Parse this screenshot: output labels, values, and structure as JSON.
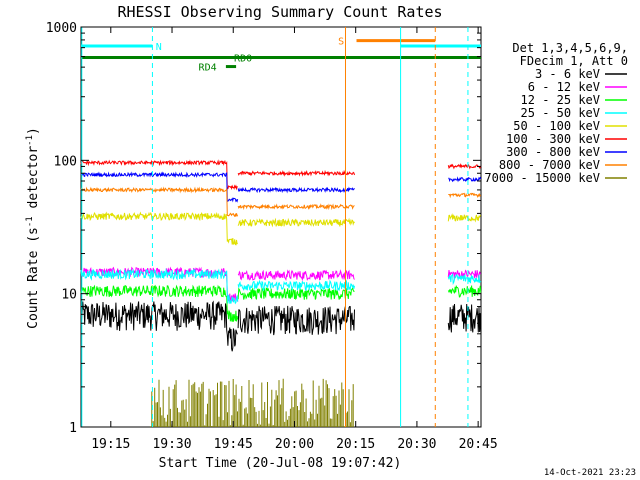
{
  "chart_data": {
    "type": "line",
    "title": "RHESSI Observing Summary Count Rates",
    "xlabel": "Start Time (20-Jul-08 19:07:42)",
    "ylabel": "Count Rate (s",
    "ylabel_sup1": "-1",
    "ylabel_mid": " detector",
    "ylabel_sup2": "-1",
    "ylabel_end": ")",
    "y_scale": "log",
    "ylim": [
      1,
      1000
    ],
    "xlim_minutes": [
      0,
      98
    ],
    "x_ticks": [
      {
        "label": "19:15",
        "minute": 7.3
      },
      {
        "label": "19:30",
        "minute": 22.3
      },
      {
        "label": "19:45",
        "minute": 37.3
      },
      {
        "label": "20:00",
        "minute": 52.3
      },
      {
        "label": "20:15",
        "minute": 67.3
      },
      {
        "label": "20:30",
        "minute": 82.3
      },
      {
        "label": "20:45",
        "minute": 97.3
      }
    ],
    "y_ticks": [
      {
        "label": "1",
        "value": 1
      },
      {
        "label": "10",
        "value": 10
      },
      {
        "label": "100",
        "value": 100
      },
      {
        "label": "1000",
        "value": 1000
      }
    ],
    "legend_header": [
      "Det 1,3,4,5,6,9,",
      "FDecim 1, Att 0"
    ],
    "series": [
      {
        "name": "3 - 6 keV",
        "color": "#000000",
        "base": 7.0,
        "jit": 0.25,
        "seg2_after": 6.5,
        "seg3": 6.8
      },
      {
        "name": "6 - 12 keV",
        "color": "#ff00ff",
        "base": 14.5,
        "jit": 0.08,
        "seg2_after": 13.8,
        "seg3": 14.0
      },
      {
        "name": "12 - 25 keV",
        "color": "#00ff00",
        "base": 10.5,
        "jit": 0.1,
        "seg2_after": 10.0,
        "seg3": 10.5
      },
      {
        "name": "25 - 50 keV",
        "color": "#00ffff",
        "base": 14.0,
        "jit": 0.08,
        "seg2_after": 11.5,
        "seg3": 13.0
      },
      {
        "name": "50 - 100 keV",
        "color": "#e0e000",
        "base": 38.0,
        "jit": 0.06,
        "seg2_after": 34.0,
        "seg3": 37.0
      },
      {
        "name": "100 - 300 keV",
        "color": "#ff0000",
        "base": 96.0,
        "jit": 0.03,
        "seg2_after": 80.0,
        "seg3": 90.0
      },
      {
        "name": "300 - 800 keV",
        "color": "#0000ff",
        "base": 78.0,
        "jit": 0.03,
        "seg2_after": 60.0,
        "seg3": 72.0
      },
      {
        "name": "800 - 7000 keV",
        "color": "#ff8000",
        "base": 60.0,
        "jit": 0.03,
        "seg2_after": 45.0,
        "seg3": 55.0
      },
      {
        "name": "7000 - 15000 keV",
        "color": "#808000",
        "base": 1.0,
        "jit": 0.0,
        "seg2_after": 1.0,
        "seg3": 1.0
      }
    ],
    "segments_minutes": [
      [
        0,
        38.5
      ],
      [
        38.5,
        67.0
      ],
      [
        90.0,
        98.0
      ]
    ],
    "dip_minutes": [
      35.8,
      38.5
    ],
    "flags": [
      {
        "label": "N",
        "color": "#00ffff",
        "start": 0,
        "end": 17.5,
        "value": 720,
        "label_at": 18.3
      },
      {
        "label": "S",
        "color": "#ff8000",
        "start": 67.5,
        "end": 86.8,
        "value": 790,
        "label_at": 63.0
      },
      {
        "label": "",
        "color": "#00ffff",
        "start": 78.3,
        "end": 98.0,
        "value": 720,
        "label_at": 0
      },
      {
        "label": "RD0",
        "color": "#008000",
        "start": 0,
        "end": 98.0,
        "value": 590,
        "label_at": 37.5
      },
      {
        "label": "RD4",
        "color": "#008000",
        "start": 35.5,
        "end": 38.0,
        "value": 505,
        "label_at": 28.8
      }
    ],
    "vlines": [
      {
        "minute": 0.2,
        "color": "#00ffff",
        "style": "solid"
      },
      {
        "minute": 17.5,
        "color": "#00ffff",
        "style": "dashed"
      },
      {
        "minute": 64.8,
        "color": "#ff8000",
        "style": "solid"
      },
      {
        "minute": 78.3,
        "color": "#00ffff",
        "style": "solid"
      },
      {
        "minute": 86.8,
        "color": "#ff8000",
        "style": "dashed"
      },
      {
        "minute": 94.8,
        "color": "#00ffff",
        "style": "dashed"
      }
    ],
    "grid": false,
    "legend_placement": "right",
    "footer_date": "14-Oct-2021 23:23"
  }
}
